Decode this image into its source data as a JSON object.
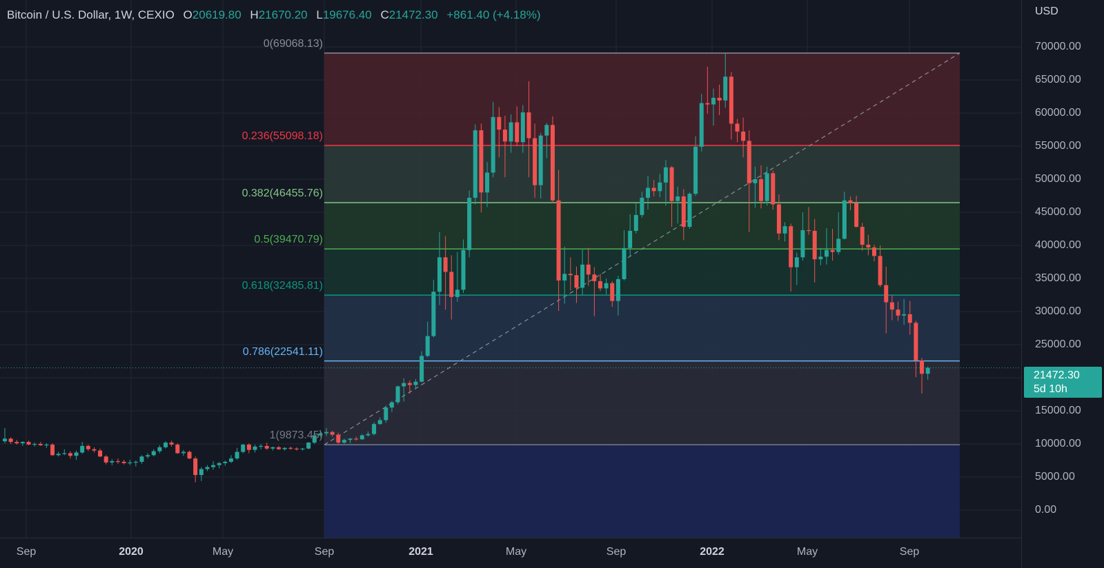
{
  "legend": {
    "symbol": "Bitcoin / U.S. Dollar, 1W, CEXIO",
    "open_label": "O",
    "open": "20619.80",
    "high_label": "H",
    "high": "21670.20",
    "low_label": "L",
    "low": "19676.40",
    "close_label": "C",
    "close": "21472.30",
    "change": "+861.40 (+4.18%)"
  },
  "price_axis": {
    "currency": "USD",
    "ticks": [
      "70000.00",
      "65000.00",
      "60000.00",
      "55000.00",
      "50000.00",
      "45000.00",
      "40000.00",
      "35000.00",
      "30000.00",
      "25000.00",
      "15000.00",
      "10000.00",
      "5000.00",
      "0.00"
    ]
  },
  "time_axis": {
    "ticks": [
      {
        "label": "Sep",
        "bold": false
      },
      {
        "label": "2020",
        "bold": true
      },
      {
        "label": "May",
        "bold": false
      },
      {
        "label": "Sep",
        "bold": false
      },
      {
        "label": "2021",
        "bold": true
      },
      {
        "label": "May",
        "bold": false
      },
      {
        "label": "Sep",
        "bold": false
      },
      {
        "label": "2022",
        "bold": true
      },
      {
        "label": "May",
        "bold": false
      },
      {
        "label": "Sep",
        "bold": false
      }
    ]
  },
  "last_price": {
    "price": "21472.30",
    "countdown": "5d 10h"
  },
  "fibonacci": {
    "levels": [
      {
        "label": "0(69068.13)",
        "ratio": 0,
        "price": 69068.13,
        "color": "#8a8d96"
      },
      {
        "label": "0.236(55098.18)",
        "ratio": 0.236,
        "price": 55098.18,
        "color": "#f23645"
      },
      {
        "label": "0.382(46455.76)",
        "ratio": 0.382,
        "price": 46455.76,
        "color": "#81c784"
      },
      {
        "label": "0.5(39470.79)",
        "ratio": 0.5,
        "price": 39470.79,
        "color": "#4caf50"
      },
      {
        "label": "0.618(32485.81)",
        "ratio": 0.618,
        "price": 32485.81,
        "color": "#089981"
      },
      {
        "label": "0.786(22541.11)",
        "ratio": 0.786,
        "price": 22541.11,
        "color": "#64b5f6"
      },
      {
        "label": "1(9873.45)",
        "ratio": 1,
        "price": 9873.45,
        "color": "#787b86"
      }
    ],
    "zone_colors": [
      "#4a222c",
      "#2c3d38",
      "#203b2a",
      "#163530",
      "#23344a",
      "#2a2e39",
      "#1b2654"
    ]
  },
  "colors": {
    "up": "#26a69a",
    "down": "#ef5350",
    "background": "#141823",
    "grid": "#232734"
  },
  "chart_data": {
    "type": "candlestick",
    "title": "Bitcoin / U.S. Dollar, 1W, CEXIO",
    "ylim": [
      -2500,
      73000
    ],
    "candles": [
      {
        "o": 10400,
        "h": 12400,
        "l": 10100,
        "c": 10800
      },
      {
        "o": 10800,
        "h": 11000,
        "l": 10000,
        "c": 10300
      },
      {
        "o": 10300,
        "h": 10600,
        "l": 9900,
        "c": 10100
      },
      {
        "o": 10100,
        "h": 10400,
        "l": 9700,
        "c": 10300
      },
      {
        "o": 10300,
        "h": 10500,
        "l": 9800,
        "c": 9900
      },
      {
        "o": 9900,
        "h": 10200,
        "l": 9600,
        "c": 10000
      },
      {
        "o": 10000,
        "h": 10300,
        "l": 9700,
        "c": 9800
      },
      {
        "o": 9800,
        "h": 10100,
        "l": 9400,
        "c": 9900
      },
      {
        "o": 9900,
        "h": 10100,
        "l": 8200,
        "c": 8300
      },
      {
        "o": 8300,
        "h": 8800,
        "l": 8100,
        "c": 8500
      },
      {
        "o": 8500,
        "h": 9200,
        "l": 8300,
        "c": 8600
      },
      {
        "o": 8600,
        "h": 8900,
        "l": 7800,
        "c": 8200
      },
      {
        "o": 8200,
        "h": 9000,
        "l": 7600,
        "c": 8700
      },
      {
        "o": 8700,
        "h": 10300,
        "l": 8500,
        "c": 9700
      },
      {
        "o": 9700,
        "h": 9900,
        "l": 8900,
        "c": 9200
      },
      {
        "o": 9200,
        "h": 9500,
        "l": 8700,
        "c": 9000
      },
      {
        "o": 9000,
        "h": 9300,
        "l": 8000,
        "c": 8100
      },
      {
        "o": 8100,
        "h": 8300,
        "l": 6900,
        "c": 7200
      },
      {
        "o": 7200,
        "h": 7700,
        "l": 6800,
        "c": 7400
      },
      {
        "o": 7400,
        "h": 7800,
        "l": 7000,
        "c": 7300
      },
      {
        "o": 7300,
        "h": 7600,
        "l": 6900,
        "c": 7100
      },
      {
        "o": 7100,
        "h": 7600,
        "l": 6800,
        "c": 7200
      },
      {
        "o": 7200,
        "h": 7500,
        "l": 6600,
        "c": 7300
      },
      {
        "o": 7300,
        "h": 8300,
        "l": 7000,
        "c": 8100
      },
      {
        "o": 8100,
        "h": 8600,
        "l": 7800,
        "c": 8300
      },
      {
        "o": 8300,
        "h": 9200,
        "l": 8100,
        "c": 8900
      },
      {
        "o": 8900,
        "h": 9800,
        "l": 8600,
        "c": 9500
      },
      {
        "o": 9500,
        "h": 10400,
        "l": 9300,
        "c": 10200
      },
      {
        "o": 10200,
        "h": 10500,
        "l": 9600,
        "c": 9900
      },
      {
        "o": 9900,
        "h": 10100,
        "l": 8500,
        "c": 8600
      },
      {
        "o": 8600,
        "h": 9100,
        "l": 8200,
        "c": 8800
      },
      {
        "o": 8800,
        "h": 9000,
        "l": 7700,
        "c": 7800
      },
      {
        "o": 7800,
        "h": 8100,
        "l": 4200,
        "c": 5300
      },
      {
        "o": 5300,
        "h": 6500,
        "l": 4400,
        "c": 6200
      },
      {
        "o": 6200,
        "h": 6800,
        "l": 5900,
        "c": 6500
      },
      {
        "o": 6500,
        "h": 7400,
        "l": 6100,
        "c": 6800
      },
      {
        "o": 6800,
        "h": 7300,
        "l": 6300,
        "c": 7100
      },
      {
        "o": 7100,
        "h": 7500,
        "l": 6700,
        "c": 7300
      },
      {
        "o": 7300,
        "h": 8300,
        "l": 7100,
        "c": 7800
      },
      {
        "o": 7800,
        "h": 9400,
        "l": 7600,
        "c": 8800
      },
      {
        "o": 8800,
        "h": 10000,
        "l": 8600,
        "c": 9900
      },
      {
        "o": 9900,
        "h": 10100,
        "l": 8600,
        "c": 9100
      },
      {
        "o": 9100,
        "h": 9900,
        "l": 8700,
        "c": 9600
      },
      {
        "o": 9600,
        "h": 10000,
        "l": 9200,
        "c": 9700
      },
      {
        "o": 9700,
        "h": 10200,
        "l": 9100,
        "c": 9300
      },
      {
        "o": 9300,
        "h": 9600,
        "l": 9000,
        "c": 9500
      },
      {
        "o": 9500,
        "h": 9700,
        "l": 9100,
        "c": 9200
      },
      {
        "o": 9200,
        "h": 9500,
        "l": 9000,
        "c": 9400
      },
      {
        "o": 9400,
        "h": 9600,
        "l": 9100,
        "c": 9300
      },
      {
        "o": 9300,
        "h": 9500,
        "l": 9000,
        "c": 9200
      },
      {
        "o": 9200,
        "h": 9400,
        "l": 9000,
        "c": 9300
      },
      {
        "o": 9300,
        "h": 10300,
        "l": 9200,
        "c": 10200
      },
      {
        "o": 10200,
        "h": 11800,
        "l": 10000,
        "c": 11300
      },
      {
        "o": 11300,
        "h": 12100,
        "l": 11000,
        "c": 11600
      },
      {
        "o": 11600,
        "h": 12400,
        "l": 11200,
        "c": 11800
      },
      {
        "o": 11800,
        "h": 12000,
        "l": 11100,
        "c": 11400
      },
      {
        "o": 11400,
        "h": 11700,
        "l": 10000,
        "c": 10200
      },
      {
        "o": 10200,
        "h": 10800,
        "l": 10000,
        "c": 10600
      },
      {
        "o": 10600,
        "h": 10900,
        "l": 10100,
        "c": 10800
      },
      {
        "o": 10800,
        "h": 11100,
        "l": 10500,
        "c": 10700
      },
      {
        "o": 10700,
        "h": 11500,
        "l": 10600,
        "c": 11300
      },
      {
        "o": 11300,
        "h": 11900,
        "l": 11100,
        "c": 11500
      },
      {
        "o": 11500,
        "h": 13300,
        "l": 11300,
        "c": 13000
      },
      {
        "o": 13000,
        "h": 14000,
        "l": 12900,
        "c": 13600
      },
      {
        "o": 13600,
        "h": 15800,
        "l": 13200,
        "c": 15500
      },
      {
        "o": 15500,
        "h": 16500,
        "l": 14800,
        "c": 16300
      },
      {
        "o": 16300,
        "h": 18800,
        "l": 16000,
        "c": 18700
      },
      {
        "o": 18700,
        "h": 19900,
        "l": 16400,
        "c": 19200
      },
      {
        "o": 19200,
        "h": 19600,
        "l": 17600,
        "c": 18900
      },
      {
        "o": 18900,
        "h": 19800,
        "l": 18300,
        "c": 19400
      },
      {
        "o": 19400,
        "h": 24000,
        "l": 19300,
        "c": 23300
      },
      {
        "o": 23300,
        "h": 28500,
        "l": 23100,
        "c": 26300
      },
      {
        "o": 26300,
        "h": 34800,
        "l": 26100,
        "c": 33000
      },
      {
        "o": 33000,
        "h": 42000,
        "l": 31000,
        "c": 38200
      },
      {
        "o": 38200,
        "h": 41400,
        "l": 30300,
        "c": 36000
      },
      {
        "o": 36000,
        "h": 38500,
        "l": 28800,
        "c": 32200
      },
      {
        "o": 32200,
        "h": 39000,
        "l": 31500,
        "c": 33300
      },
      {
        "o": 33300,
        "h": 40900,
        "l": 32800,
        "c": 39300
      },
      {
        "o": 39300,
        "h": 48300,
        "l": 38200,
        "c": 47200
      },
      {
        "o": 47200,
        "h": 58300,
        "l": 46200,
        "c": 57400
      },
      {
        "o": 57400,
        "h": 58400,
        "l": 45000,
        "c": 48000
      },
      {
        "o": 48000,
        "h": 52600,
        "l": 45800,
        "c": 51000
      },
      {
        "o": 51000,
        "h": 61700,
        "l": 50300,
        "c": 59400
      },
      {
        "o": 59400,
        "h": 60900,
        "l": 53300,
        "c": 57500
      },
      {
        "o": 57500,
        "h": 59600,
        "l": 50300,
        "c": 55700
      },
      {
        "o": 55700,
        "h": 59800,
        "l": 54000,
        "c": 58600
      },
      {
        "o": 58600,
        "h": 61000,
        "l": 55000,
        "c": 55600
      },
      {
        "o": 55600,
        "h": 61200,
        "l": 54000,
        "c": 60100
      },
      {
        "o": 60100,
        "h": 64800,
        "l": 50300,
        "c": 56200
      },
      {
        "o": 56200,
        "h": 58400,
        "l": 47200,
        "c": 49100
      },
      {
        "o": 49100,
        "h": 57000,
        "l": 47100,
        "c": 56600
      },
      {
        "o": 56600,
        "h": 58500,
        "l": 53200,
        "c": 58200
      },
      {
        "o": 58200,
        "h": 59500,
        "l": 46400,
        "c": 46800
      },
      {
        "o": 46800,
        "h": 51400,
        "l": 30100,
        "c": 34700
      },
      {
        "o": 34700,
        "h": 39800,
        "l": 31200,
        "c": 35700
      },
      {
        "o": 35700,
        "h": 38200,
        "l": 33200,
        "c": 35500
      },
      {
        "o": 35500,
        "h": 36800,
        "l": 31300,
        "c": 33600
      },
      {
        "o": 33600,
        "h": 39400,
        "l": 32500,
        "c": 37100
      },
      {
        "o": 37100,
        "h": 39600,
        "l": 33900,
        "c": 35600
      },
      {
        "o": 35600,
        "h": 36700,
        "l": 29300,
        "c": 34600
      },
      {
        "o": 34600,
        "h": 35700,
        "l": 33100,
        "c": 33500
      },
      {
        "o": 33500,
        "h": 35000,
        "l": 32600,
        "c": 34300
      },
      {
        "o": 34300,
        "h": 34600,
        "l": 30700,
        "c": 31600
      },
      {
        "o": 31600,
        "h": 35400,
        "l": 29400,
        "c": 34900
      },
      {
        "o": 34900,
        "h": 42300,
        "l": 34700,
        "c": 39600
      },
      {
        "o": 39600,
        "h": 44700,
        "l": 38400,
        "c": 42200
      },
      {
        "o": 42200,
        "h": 46400,
        "l": 41800,
        "c": 44600
      },
      {
        "o": 44600,
        "h": 48100,
        "l": 44200,
        "c": 47200
      },
      {
        "o": 47200,
        "h": 50500,
        "l": 45400,
        "c": 48700
      },
      {
        "o": 48700,
        "h": 49900,
        "l": 47400,
        "c": 48200
      },
      {
        "o": 48200,
        "h": 50800,
        "l": 47300,
        "c": 49500
      },
      {
        "o": 49500,
        "h": 52900,
        "l": 46000,
        "c": 51800
      },
      {
        "o": 51800,
        "h": 52000,
        "l": 42800,
        "c": 46700
      },
      {
        "o": 46700,
        "h": 48900,
        "l": 43300,
        "c": 47400
      },
      {
        "o": 47400,
        "h": 48500,
        "l": 40800,
        "c": 42800
      },
      {
        "o": 42800,
        "h": 48000,
        "l": 42500,
        "c": 47800
      },
      {
        "o": 47800,
        "h": 56500,
        "l": 47500,
        "c": 54900
      },
      {
        "o": 54900,
        "h": 62900,
        "l": 54200,
        "c": 61500
      },
      {
        "o": 61500,
        "h": 67000,
        "l": 59900,
        "c": 61300
      },
      {
        "o": 61300,
        "h": 63700,
        "l": 58100,
        "c": 62300
      },
      {
        "o": 62300,
        "h": 64300,
        "l": 59700,
        "c": 61900
      },
      {
        "o": 61900,
        "h": 69000,
        "l": 60800,
        "c": 65500
      },
      {
        "o": 65500,
        "h": 66200,
        "l": 56000,
        "c": 58400
      },
      {
        "o": 58400,
        "h": 59100,
        "l": 55600,
        "c": 57200
      },
      {
        "o": 57200,
        "h": 59300,
        "l": 53300,
        "c": 55800
      },
      {
        "o": 55800,
        "h": 57400,
        "l": 42000,
        "c": 49400
      },
      {
        "o": 49400,
        "h": 51900,
        "l": 45700,
        "c": 50000
      },
      {
        "o": 50000,
        "h": 52100,
        "l": 45600,
        "c": 46700
      },
      {
        "o": 46700,
        "h": 51900,
        "l": 46000,
        "c": 50900
      },
      {
        "o": 50900,
        "h": 51300,
        "l": 45400,
        "c": 46200
      },
      {
        "o": 46200,
        "h": 47700,
        "l": 40800,
        "c": 41800
      },
      {
        "o": 41800,
        "h": 43500,
        "l": 40600,
        "c": 42900
      },
      {
        "o": 42900,
        "h": 43300,
        "l": 33000,
        "c": 36700
      },
      {
        "o": 36700,
        "h": 38900,
        "l": 34000,
        "c": 38200
      },
      {
        "o": 38200,
        "h": 45000,
        "l": 37700,
        "c": 42300
      },
      {
        "o": 42300,
        "h": 45800,
        "l": 41600,
        "c": 42200
      },
      {
        "o": 42200,
        "h": 44000,
        "l": 34400,
        "c": 37900
      },
      {
        "o": 37900,
        "h": 39600,
        "l": 37000,
        "c": 38300
      },
      {
        "o": 38300,
        "h": 42600,
        "l": 37100,
        "c": 39300
      },
      {
        "o": 39300,
        "h": 42500,
        "l": 37700,
        "c": 39000
      },
      {
        "o": 39000,
        "h": 45000,
        "l": 38600,
        "c": 41000
      },
      {
        "o": 41000,
        "h": 48100,
        "l": 40900,
        "c": 46800
      },
      {
        "o": 46800,
        "h": 47400,
        "l": 45300,
        "c": 46400
      },
      {
        "o": 46400,
        "h": 47500,
        "l": 42700,
        "c": 42800
      },
      {
        "o": 42800,
        "h": 43400,
        "l": 39200,
        "c": 40100
      },
      {
        "o": 40100,
        "h": 41600,
        "l": 38500,
        "c": 39700
      },
      {
        "o": 39700,
        "h": 40100,
        "l": 37600,
        "c": 38400
      },
      {
        "o": 38400,
        "h": 40000,
        "l": 33700,
        "c": 34000
      },
      {
        "o": 34000,
        "h": 36800,
        "l": 26700,
        "c": 31400
      },
      {
        "o": 31400,
        "h": 32500,
        "l": 28700,
        "c": 30300
      },
      {
        "o": 30300,
        "h": 31500,
        "l": 28600,
        "c": 29400
      },
      {
        "o": 29400,
        "h": 31900,
        "l": 28000,
        "c": 29600
      },
      {
        "o": 29600,
        "h": 31600,
        "l": 26500,
        "c": 28300
      },
      {
        "o": 28300,
        "h": 28600,
        "l": 20100,
        "c": 22600
      },
      {
        "o": 22600,
        "h": 23000,
        "l": 17600,
        "c": 20600
      },
      {
        "o": 20600,
        "h": 21700,
        "l": 19700,
        "c": 21500
      }
    ]
  }
}
